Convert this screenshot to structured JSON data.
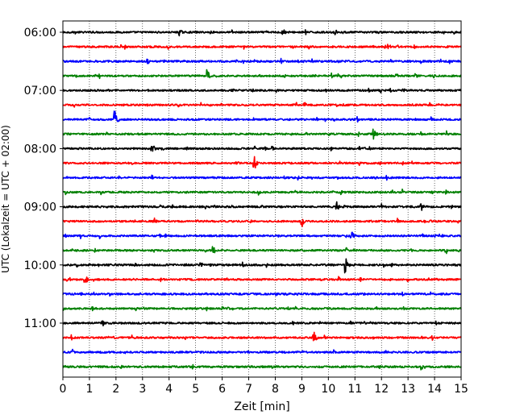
{
  "chart_data": {
    "type": "line",
    "title": "",
    "xlabel": "Zeit  [min]",
    "ylabel": "UTC (Lokalzeit = UTC + 02:00)",
    "xlim": [
      0,
      15
    ],
    "x_ticks": [
      0,
      1,
      2,
      3,
      4,
      5,
      6,
      7,
      8,
      9,
      10,
      11,
      12,
      13,
      14,
      15
    ],
    "x_tick_labels": [
      "0",
      "1",
      "2",
      "3",
      "4",
      "5",
      "6",
      "7",
      "8",
      "9",
      "10",
      "11",
      "12",
      "13",
      "14",
      "15"
    ],
    "y_tick_labels": [
      "06:00",
      "07:00",
      "08:00",
      "09:00",
      "10:00",
      "11:00"
    ],
    "y_tick_rows": [
      0,
      4,
      8,
      12,
      16,
      20
    ],
    "grid": "vertical dotted",
    "legend": "none",
    "colors": [
      "#000000",
      "#ff0000",
      "#0000ff",
      "#008000"
    ],
    "series": [
      {
        "start": "06:00",
        "color": "#000000",
        "noise": 0.12,
        "events": [
          {
            "t": 4.4,
            "a": 0.5
          },
          {
            "t": 8.3,
            "a": 0.55
          }
        ]
      },
      {
        "start": "06:15",
        "color": "#ff0000",
        "noise": 0.12,
        "events": []
      },
      {
        "start": "06:30",
        "color": "#0000ff",
        "noise": 0.13,
        "events": [
          {
            "t": 3.2,
            "a": 0.4
          }
        ]
      },
      {
        "start": "06:45",
        "color": "#008000",
        "noise": 0.12,
        "events": [
          {
            "t": 5.45,
            "a": 0.9
          },
          {
            "t": 10.4,
            "a": 0.3
          },
          {
            "t": 13.3,
            "a": 0.35
          }
        ]
      },
      {
        "start": "07:00",
        "color": "#000000",
        "noise": 0.12,
        "events": []
      },
      {
        "start": "07:15",
        "color": "#ff0000",
        "noise": 0.12,
        "events": [
          {
            "t": 9.1,
            "a": 0.4
          }
        ]
      },
      {
        "start": "07:30",
        "color": "#0000ff",
        "noise": 0.12,
        "events": [
          {
            "t": 1.95,
            "a": 1.5
          }
        ]
      },
      {
        "start": "07:45",
        "color": "#008000",
        "noise": 0.12,
        "events": [
          {
            "t": 11.7,
            "a": 1.0
          }
        ]
      },
      {
        "start": "08:00",
        "color": "#000000",
        "noise": 0.12,
        "events": [
          {
            "t": 3.35,
            "a": 0.85
          },
          {
            "t": 7.9,
            "a": 0.3
          }
        ]
      },
      {
        "start": "08:15",
        "color": "#ff0000",
        "noise": 0.12,
        "events": [
          {
            "t": 7.2,
            "a": 1.3
          }
        ]
      },
      {
        "start": "08:30",
        "color": "#0000ff",
        "noise": 0.12,
        "events": []
      },
      {
        "start": "08:45",
        "color": "#008000",
        "noise": 0.12,
        "events": [
          {
            "t": 13.9,
            "a": 0.35
          }
        ]
      },
      {
        "start": "09:00",
        "color": "#000000",
        "noise": 0.13,
        "events": [
          {
            "t": 10.3,
            "a": 1.0
          },
          {
            "t": 13.5,
            "a": 0.6
          }
        ]
      },
      {
        "start": "09:15",
        "color": "#ff0000",
        "noise": 0.12,
        "events": [
          {
            "t": 3.45,
            "a": 0.45
          },
          {
            "t": 9.0,
            "a": 1.1
          }
        ]
      },
      {
        "start": "09:30",
        "color": "#0000ff",
        "noise": 0.12,
        "events": [
          {
            "t": 10.9,
            "a": 0.55
          }
        ]
      },
      {
        "start": "09:45",
        "color": "#008000",
        "noise": 0.12,
        "events": [
          {
            "t": 5.65,
            "a": 0.7
          }
        ]
      },
      {
        "start": "10:00",
        "color": "#000000",
        "noise": 0.13,
        "events": [
          {
            "t": 5.2,
            "a": 0.45
          },
          {
            "t": 10.65,
            "a": 1.2
          }
        ]
      },
      {
        "start": "10:15",
        "color": "#ff0000",
        "noise": 0.12,
        "events": [
          {
            "t": 0.9,
            "a": 0.4
          }
        ]
      },
      {
        "start": "10:30",
        "color": "#0000ff",
        "noise": 0.13,
        "events": []
      },
      {
        "start": "10:45",
        "color": "#008000",
        "noise": 0.12,
        "events": [
          {
            "t": 6.0,
            "a": 0.35
          }
        ]
      },
      {
        "start": "11:00",
        "color": "#000000",
        "noise": 0.12,
        "events": []
      },
      {
        "start": "11:15",
        "color": "#ff0000",
        "noise": 0.12,
        "events": [
          {
            "t": 9.45,
            "a": 0.9
          }
        ]
      },
      {
        "start": "11:30",
        "color": "#0000ff",
        "noise": 0.12,
        "events": [
          {
            "t": 12.2,
            "a": 0.3
          }
        ]
      },
      {
        "start": "11:45",
        "color": "#008000",
        "noise": 0.13,
        "events": [
          {
            "t": 13.5,
            "a": 0.45
          }
        ]
      }
    ]
  }
}
